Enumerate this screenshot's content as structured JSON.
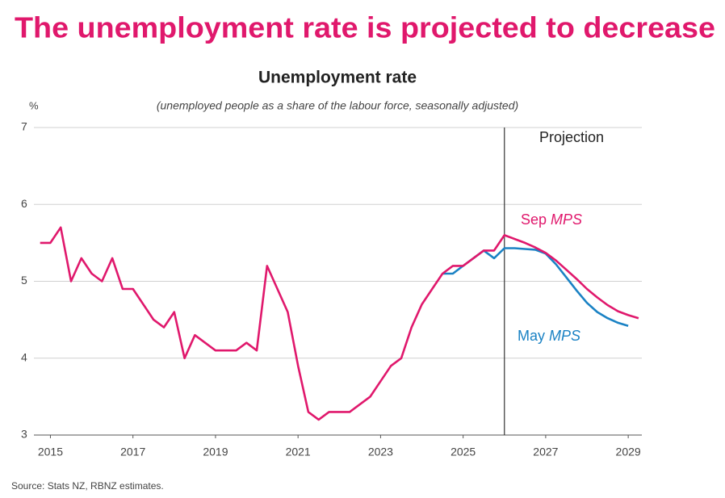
{
  "chart_data": {
    "type": "line",
    "headline": "The unemployment rate is projected to decrease",
    "title": "Unemployment rate",
    "subtitle": "(unemployed people as a share of the labour force, seasonally adjusted)",
    "y_unit": "%",
    "annotation": "Projection",
    "projection_x": 2026,
    "source": "Source: Stats NZ, RBNZ estimates.",
    "x": [
      2014.75,
      2015,
      2015.25,
      2015.5,
      2015.75,
      2016,
      2016.25,
      2016.5,
      2016.75,
      2017,
      2017.25,
      2017.5,
      2017.75,
      2018,
      2018.25,
      2018.5,
      2018.75,
      2019,
      2019.25,
      2019.5,
      2019.75,
      2020,
      2020.25,
      2020.5,
      2020.75,
      2021,
      2021.25,
      2021.5,
      2021.75,
      2022,
      2022.25,
      2022.5,
      2022.75,
      2023,
      2023.25,
      2023.5,
      2023.75,
      2024,
      2024.25,
      2024.5,
      2024.75,
      2025,
      2025.25,
      2025.5,
      2025.75,
      2026,
      2026.25,
      2026.5,
      2026.75,
      2027,
      2027.25,
      2027.5,
      2027.75,
      2028,
      2028.25,
      2028.5,
      2028.75,
      2029,
      2029.25
    ],
    "series": [
      {
        "name": "May MPS",
        "color": "#1a82c4",
        "values": [
          null,
          null,
          null,
          null,
          null,
          null,
          null,
          null,
          null,
          null,
          null,
          null,
          null,
          null,
          null,
          null,
          null,
          null,
          null,
          null,
          null,
          null,
          null,
          null,
          null,
          null,
          null,
          null,
          null,
          null,
          null,
          null,
          null,
          null,
          null,
          null,
          null,
          null,
          null,
          5.1,
          5.1,
          5.2,
          5.3,
          5.4,
          5.3,
          5.43,
          5.43,
          5.42,
          5.41,
          5.36,
          5.22,
          5.05,
          4.88,
          4.72,
          4.6,
          4.52,
          4.46,
          4.42,
          null
        ]
      },
      {
        "name": "Sep MPS",
        "color": "#e0186c",
        "values": [
          5.5,
          5.5,
          5.7,
          5.0,
          5.3,
          5.1,
          5.0,
          5.3,
          4.9,
          4.9,
          4.7,
          4.5,
          4.4,
          4.6,
          4.0,
          4.3,
          4.2,
          4.1,
          4.1,
          4.1,
          4.2,
          4.1,
          5.2,
          4.9,
          4.6,
          3.9,
          3.3,
          3.2,
          3.3,
          3.3,
          3.3,
          3.4,
          3.5,
          3.7,
          3.9,
          4.0,
          4.4,
          4.7,
          4.9,
          5.1,
          5.2,
          5.2,
          5.3,
          5.4,
          5.4,
          5.6,
          5.55,
          5.5,
          5.44,
          5.37,
          5.27,
          5.15,
          5.03,
          4.9,
          4.79,
          4.69,
          4.61,
          4.56,
          4.52
        ]
      }
    ],
    "xlim": [
      2014.6,
      2029.33
    ],
    "xticks": [
      2015,
      2017,
      2019,
      2021,
      2023,
      2025,
      2027,
      2029
    ],
    "ylim": [
      3,
      7
    ],
    "yticks": [
      3,
      4,
      5,
      6,
      7
    ],
    "grid": true
  }
}
